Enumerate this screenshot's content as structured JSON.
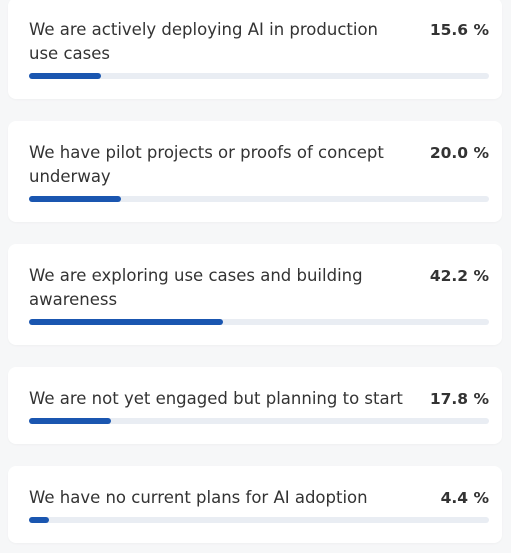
{
  "chart_data": {
    "type": "bar",
    "orientation": "horizontal",
    "categories": [
      "We are actively deploying AI in production use cases",
      "We have pilot projects or proofs of concept underway",
      "We are exploring use cases and building awareness",
      "We are not yet engaged but planning to start",
      "We have no current plans for AI adoption"
    ],
    "values": [
      15.6,
      20.0,
      42.2,
      17.8,
      4.4
    ],
    "value_labels": [
      "15.6 %",
      "20.0 %",
      "42.2 %",
      "17.8 %",
      "4.4 %"
    ],
    "xlim": [
      0,
      100
    ],
    "color": "#1a56b0"
  }
}
